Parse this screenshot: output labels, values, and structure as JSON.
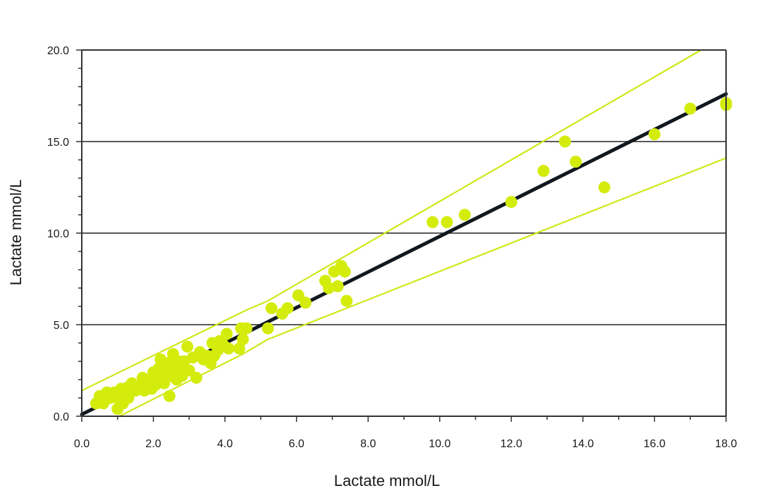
{
  "chart_data": {
    "type": "scatter",
    "title": "",
    "xlabel": "Lactate mmol/L",
    "ylabel": "Lactate mmol/L",
    "xlim": [
      0,
      18
    ],
    "ylim": [
      0,
      20
    ],
    "x_ticks": [
      "0.0",
      "2.0",
      "4.0",
      "6.0",
      "8.0",
      "10.0",
      "12.0",
      "14.0",
      "16.0",
      "18.0"
    ],
    "y_ticks": [
      "0.0",
      "5.0",
      "10.0",
      "15.0",
      "20.0"
    ],
    "grid": "horizontal",
    "colors": {
      "points": "#d4ec0c",
      "limit_lines": "#cfe81a",
      "regression": "#111820",
      "axes": "#333333",
      "grid": "#222222"
    },
    "regression_line": {
      "x": [
        0,
        18
      ],
      "y": [
        0.1,
        17.6
      ]
    },
    "upper_limit": {
      "x": [
        0,
        4.6,
        5.2,
        17.3
      ],
      "y": [
        1.4,
        5.8,
        6.3,
        20
      ]
    },
    "lower_limit": {
      "x": [
        1.05,
        4.5,
        5.2,
        18
      ],
      "y": [
        0,
        3.4,
        4.2,
        14.1
      ]
    },
    "points": [
      {
        "x": 0.4,
        "y": 0.7
      },
      {
        "x": 0.5,
        "y": 1.1
      },
      {
        "x": 0.6,
        "y": 0.7
      },
      {
        "x": 0.7,
        "y": 1.3
      },
      {
        "x": 0.8,
        "y": 1.0
      },
      {
        "x": 0.9,
        "y": 1.3
      },
      {
        "x": 1.0,
        "y": 0.4
      },
      {
        "x": 1.0,
        "y": 1.0
      },
      {
        "x": 1.1,
        "y": 1.5
      },
      {
        "x": 1.15,
        "y": 0.7
      },
      {
        "x": 1.2,
        "y": 1.2
      },
      {
        "x": 1.3,
        "y": 1.0
      },
      {
        "x": 1.3,
        "y": 1.6
      },
      {
        "x": 1.4,
        "y": 1.8
      },
      {
        "x": 1.5,
        "y": 1.4
      },
      {
        "x": 1.6,
        "y": 1.6
      },
      {
        "x": 1.7,
        "y": 2.1
      },
      {
        "x": 1.75,
        "y": 1.4
      },
      {
        "x": 1.8,
        "y": 1.8
      },
      {
        "x": 1.9,
        "y": 2.0
      },
      {
        "x": 1.95,
        "y": 1.5
      },
      {
        "x": 2.0,
        "y": 2.4
      },
      {
        "x": 2.05,
        "y": 1.7
      },
      {
        "x": 2.1,
        "y": 2.0
      },
      {
        "x": 2.15,
        "y": 2.6
      },
      {
        "x": 2.2,
        "y": 3.1
      },
      {
        "x": 2.25,
        "y": 2.2
      },
      {
        "x": 2.3,
        "y": 1.8
      },
      {
        "x": 2.35,
        "y": 2.5
      },
      {
        "x": 2.4,
        "y": 2.9
      },
      {
        "x": 2.45,
        "y": 1.1
      },
      {
        "x": 2.5,
        "y": 2.2
      },
      {
        "x": 2.55,
        "y": 3.4
      },
      {
        "x": 2.6,
        "y": 2.6
      },
      {
        "x": 2.65,
        "y": 2.0
      },
      {
        "x": 2.7,
        "y": 3.0
      },
      {
        "x": 2.75,
        "y": 2.4
      },
      {
        "x": 2.8,
        "y": 2.2
      },
      {
        "x": 2.85,
        "y": 3.0
      },
      {
        "x": 2.9,
        "y": 2.6
      },
      {
        "x": 2.95,
        "y": 3.8
      },
      {
        "x": 3.0,
        "y": 2.5
      },
      {
        "x": 3.1,
        "y": 3.2
      },
      {
        "x": 3.2,
        "y": 2.1
      },
      {
        "x": 3.3,
        "y": 3.5
      },
      {
        "x": 3.4,
        "y": 3.1
      },
      {
        "x": 3.5,
        "y": 3.3
      },
      {
        "x": 3.6,
        "y": 2.9
      },
      {
        "x": 3.65,
        "y": 4.0
      },
      {
        "x": 3.7,
        "y": 3.3
      },
      {
        "x": 3.8,
        "y": 3.6
      },
      {
        "x": 3.85,
        "y": 4.1
      },
      {
        "x": 3.95,
        "y": 3.9
      },
      {
        "x": 4.05,
        "y": 4.5
      },
      {
        "x": 4.1,
        "y": 3.7
      },
      {
        "x": 4.4,
        "y": 3.7
      },
      {
        "x": 4.45,
        "y": 4.8
      },
      {
        "x": 4.5,
        "y": 4.2
      },
      {
        "x": 4.6,
        "y": 4.8
      },
      {
        "x": 5.2,
        "y": 4.8
      },
      {
        "x": 5.3,
        "y": 5.9
      },
      {
        "x": 5.6,
        "y": 5.6
      },
      {
        "x": 5.75,
        "y": 5.9
      },
      {
        "x": 6.05,
        "y": 6.6
      },
      {
        "x": 6.25,
        "y": 6.2
      },
      {
        "x": 6.8,
        "y": 7.4
      },
      {
        "x": 6.9,
        "y": 7.0
      },
      {
        "x": 7.05,
        "y": 7.9
      },
      {
        "x": 7.15,
        "y": 7.1
      },
      {
        "x": 7.25,
        "y": 8.2
      },
      {
        "x": 7.35,
        "y": 7.9
      },
      {
        "x": 7.4,
        "y": 6.3
      },
      {
        "x": 9.8,
        "y": 10.6
      },
      {
        "x": 10.2,
        "y": 10.6
      },
      {
        "x": 10.7,
        "y": 11.0
      },
      {
        "x": 12.0,
        "y": 11.7
      },
      {
        "x": 12.9,
        "y": 13.4
      },
      {
        "x": 13.5,
        "y": 15.0
      },
      {
        "x": 13.8,
        "y": 13.9
      },
      {
        "x": 14.6,
        "y": 12.5
      },
      {
        "x": 16.0,
        "y": 15.4
      },
      {
        "x": 17.0,
        "y": 16.8
      },
      {
        "x": 18.0,
        "y": 17.0
      },
      {
        "x": 18.0,
        "y": 17.1
      }
    ]
  }
}
